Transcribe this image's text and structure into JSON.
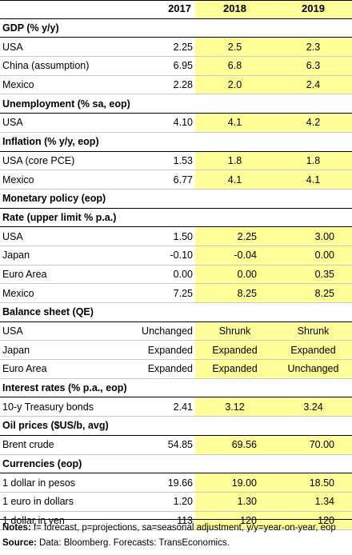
{
  "columns": [
    "",
    "2017",
    "2018",
    "2019"
  ],
  "sections": [
    {
      "title": "GDP (% y/y)",
      "rows": [
        {
          "label": "USA",
          "values": [
            "2.25",
            "2.5",
            "2.3"
          ]
        },
        {
          "label": "China (assumption)",
          "values": [
            "6.95",
            "6.8",
            "6.3"
          ]
        },
        {
          "label": "Mexico",
          "values": [
            "2.28",
            "2.0",
            "2.4"
          ]
        }
      ]
    },
    {
      "title": "Unemployment (% sa, eop)",
      "rows": [
        {
          "label": "USA",
          "values": [
            "4.10",
            "4.1",
            "4.2"
          ]
        }
      ]
    },
    {
      "title": "Inflation (% y/y, eop)",
      "rows": [
        {
          "label": "USA (core PCE)",
          "values": [
            "1.53",
            "1.8",
            "1.8"
          ]
        },
        {
          "label": "Mexico",
          "values": [
            "6.77",
            "4.1",
            "4.1"
          ]
        }
      ]
    },
    {
      "title": "Monetary policy (eop)",
      "rows": []
    },
    {
      "title": "Rate (upper limit % p.a.)",
      "rows": [
        {
          "label": "USA",
          "values": [
            "1.50",
            "2.25",
            "3.00"
          ]
        },
        {
          "label": "Japan",
          "values": [
            "-0.10",
            "-0.04",
            "0.00"
          ]
        },
        {
          "label": "Euro Area",
          "values": [
            "0.00",
            "0.00",
            "0.35"
          ]
        },
        {
          "label": "Mexico",
          "values": [
            "7.25",
            "8.25",
            "8.25"
          ]
        }
      ]
    },
    {
      "title": "Balance sheet (QE)",
      "rows": [
        {
          "label": "USA",
          "values": [
            "Unchanged",
            "Shrunk",
            "Shrunk"
          ]
        },
        {
          "label": "Japan",
          "values": [
            "Expanded",
            "Expanded",
            "Expanded"
          ]
        },
        {
          "label": "Euro Area",
          "values": [
            "Expanded",
            "Expanded",
            "Unchanged"
          ]
        }
      ]
    },
    {
      "title": "Interest rates (% p.a., eop)",
      "rows": [
        {
          "label": "10-y Treasury bonds",
          "values": [
            "2.41",
            "3.12",
            "3.24"
          ]
        }
      ]
    },
    {
      "title": "Oil prices ($US/b, avg)",
      "rows": [
        {
          "label": "Brent crude",
          "values": [
            "54.85",
            "69.56",
            "70.00"
          ]
        }
      ]
    },
    {
      "title": "Currencies (eop)",
      "rows": [
        {
          "label": "1 dollar in pesos",
          "values": [
            "19.66",
            "19.00",
            "18.50"
          ]
        },
        {
          "label": "1 euro in dollars",
          "values": [
            "1.20",
            "1.30",
            "1.34"
          ]
        },
        {
          "label": "1 dollar in yen",
          "values": [
            "113",
            "120",
            "120"
          ]
        }
      ]
    }
  ],
  "notes": {
    "label": "Notes:",
    "text": " f= forecast, p=projections, sa=seasonal adjustment, y/y=year-on-year, eop"
  },
  "source": {
    "label": "Source:",
    "text": " Data: Bloomberg. Forecasts: TransEconomics."
  },
  "colors": {
    "forecast_fill": "#ffff99"
  }
}
